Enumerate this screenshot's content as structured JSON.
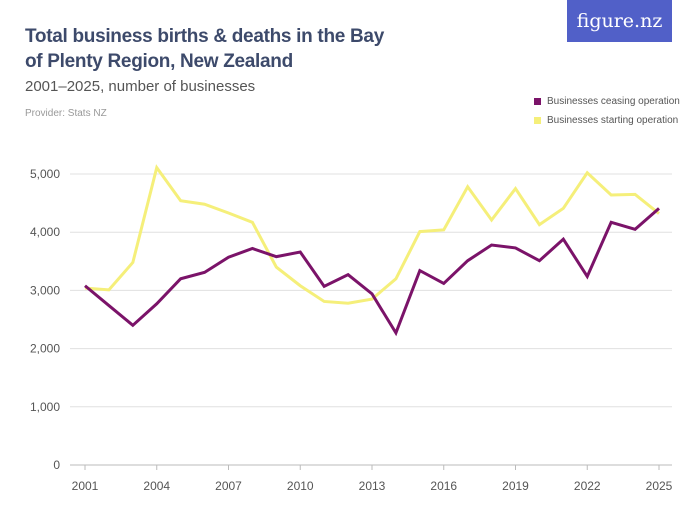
{
  "header": {
    "title": "Total business births & deaths in the Bay of Plenty Region, New Zealand",
    "subtitle": "2001–2025, number of businesses",
    "provider": "Provider: Stats NZ",
    "logo": "figure.nz",
    "logo_color": "#5160c8"
  },
  "chart_data": {
    "type": "line",
    "title": "Total business births & deaths in the Bay of Plenty Region, New Zealand",
    "subtitle": "2001–2025, number of businesses",
    "xlabel": "",
    "ylabel": "",
    "x": [
      2001,
      2002,
      2003,
      2004,
      2005,
      2006,
      2007,
      2008,
      2009,
      2010,
      2011,
      2012,
      2013,
      2014,
      2015,
      2016,
      2017,
      2018,
      2019,
      2020,
      2021,
      2022,
      2023,
      2024,
      2025
    ],
    "xticks": [
      "2001",
      "2004",
      "2007",
      "2010",
      "2013",
      "2016",
      "2019",
      "2022",
      "2025"
    ],
    "yticks": [
      "0",
      "1,000",
      "2,000",
      "3,000",
      "4,000",
      "5,000"
    ],
    "ylim": [
      0,
      5000
    ],
    "grid": true,
    "legend": "top-right",
    "series": [
      {
        "name": "Businesses ceasing operation",
        "color": "#7b1369",
        "values": [
          3080,
          2740,
          2400,
          2770,
          3200,
          3310,
          3570,
          3720,
          3580,
          3660,
          3070,
          3270,
          2940,
          2270,
          3340,
          3120,
          3510,
          3780,
          3730,
          3510,
          3880,
          3240,
          4170,
          4050,
          4410
        ]
      },
      {
        "name": "Businesses starting operation",
        "color": "#f5ef7a",
        "values": [
          3040,
          3010,
          3480,
          5110,
          4540,
          4480,
          4330,
          4170,
          3400,
          3080,
          2810,
          2780,
          2850,
          3200,
          4010,
          4040,
          4780,
          4210,
          4750,
          4130,
          4410,
          5020,
          4640,
          4650,
          4320
        ]
      }
    ]
  }
}
